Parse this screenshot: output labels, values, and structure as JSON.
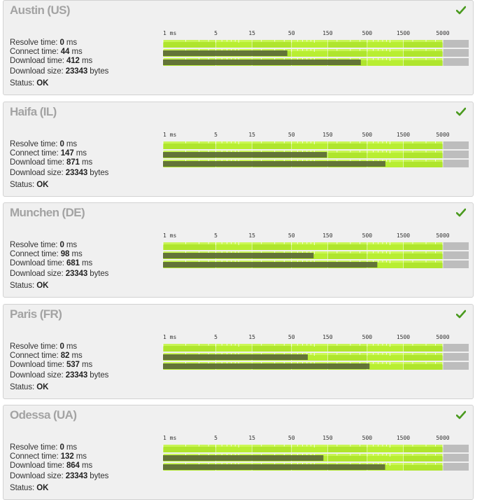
{
  "colors": {
    "panel_bg": "#f0f0f0",
    "bar_fill": "#5c6a38",
    "track_green": "#b8ee32",
    "track_gray": "#bdbdbd",
    "check_green": "#4a9a1e"
  },
  "labels": {
    "resolve": "Resolve time:",
    "connect": "Connect time:",
    "download": "Download time:",
    "size": "Download size:",
    "status": "Status:",
    "ms": "ms",
    "bytes": "bytes"
  },
  "scale": {
    "ticks": [
      "1 ms",
      "5",
      "15",
      "50",
      "150",
      "500",
      "1500",
      "5000"
    ],
    "tick_values": [
      1,
      5,
      15,
      50,
      150,
      500,
      1500,
      5000
    ],
    "log_scale": true
  },
  "locations": [
    {
      "name": "Austin (US)",
      "resolve": "0",
      "connect": "44",
      "download": "412",
      "size": "23343",
      "status": "OK",
      "status_icon": "check-icon"
    },
    {
      "name": "Haifa (IL)",
      "resolve": "0",
      "connect": "147",
      "download": "871",
      "size": "23343",
      "status": "OK",
      "status_icon": "check-icon"
    },
    {
      "name": "Munchen (DE)",
      "resolve": "0",
      "connect": "98",
      "download": "681",
      "size": "23343",
      "status": "OK",
      "status_icon": "check-icon"
    },
    {
      "name": "Paris (FR)",
      "resolve": "0",
      "connect": "82",
      "download": "537",
      "size": "23343",
      "status": "OK",
      "status_icon": "check-icon"
    },
    {
      "name": "Odessa (UA)",
      "resolve": "0",
      "connect": "132",
      "download": "864",
      "size": "23343",
      "status": "OK",
      "status_icon": "check-icon"
    }
  ]
}
